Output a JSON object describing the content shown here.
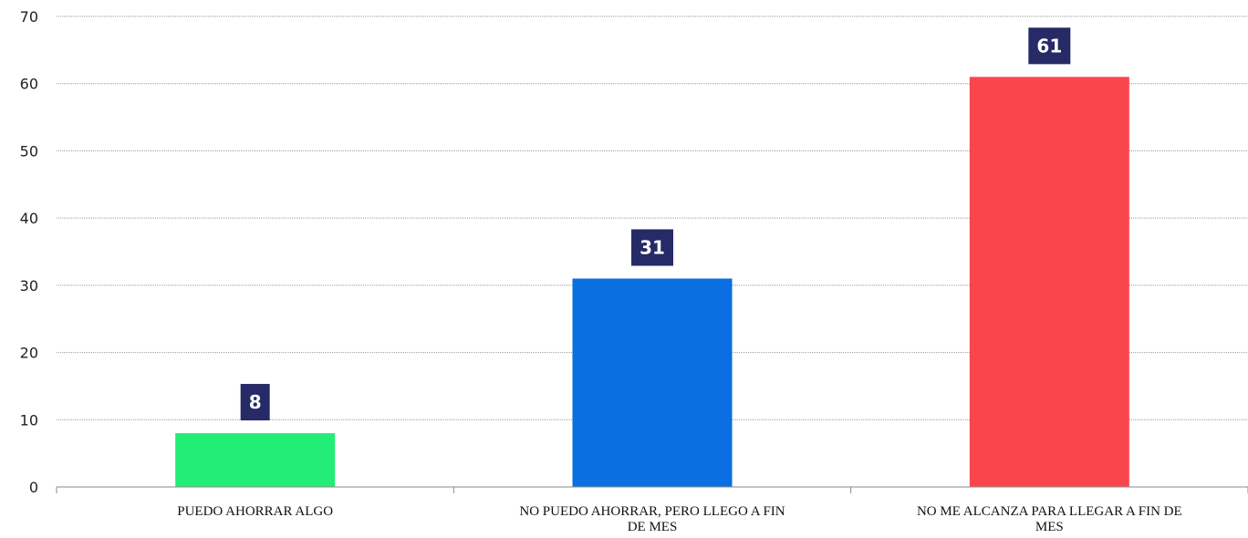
{
  "chart_data": {
    "type": "bar",
    "categories": [
      [
        "PUEDO AHORRAR ALGO"
      ],
      [
        "NO PUEDO AHORRAR, PERO LLEGO A FIN",
        "DE MES"
      ],
      [
        "NO ME ALCANZA PARA LLEGAR A FIN DE",
        "MES"
      ]
    ],
    "values": [
      8,
      31,
      61
    ],
    "data_labels": [
      "8",
      "31",
      "61"
    ],
    "colors": [
      "#22ee77",
      "#0a6fe0",
      "#fb454d"
    ],
    "label_background": "#262a66",
    "title": "",
    "xlabel": "",
    "ylabel": "",
    "ylim": [
      0,
      70
    ],
    "yticks": [
      0,
      10,
      20,
      30,
      40,
      50,
      60,
      70
    ],
    "grid": "horizontal-dotted",
    "legend": "none"
  }
}
